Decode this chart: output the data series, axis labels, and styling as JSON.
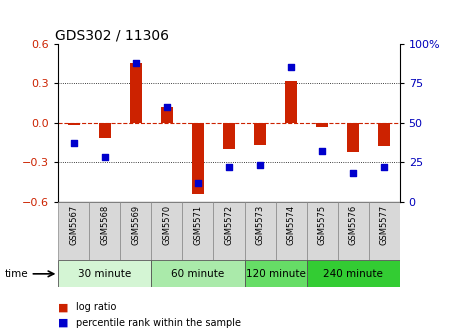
{
  "title": "GDS302 / 11306",
  "samples": [
    "GSM5567",
    "GSM5568",
    "GSM5569",
    "GSM5570",
    "GSM5571",
    "GSM5572",
    "GSM5573",
    "GSM5574",
    "GSM5575",
    "GSM5576",
    "GSM5577"
  ],
  "log_ratio": [
    -0.02,
    -0.12,
    0.45,
    0.12,
    -0.54,
    -0.2,
    -0.17,
    0.32,
    -0.03,
    -0.22,
    -0.18
  ],
  "percentile": [
    37,
    28,
    88,
    60,
    12,
    22,
    23,
    85,
    32,
    18,
    22
  ],
  "ylim": [
    -0.6,
    0.6
  ],
  "yticks_left": [
    -0.6,
    -0.3,
    0,
    0.3,
    0.6
  ],
  "yticks_right": [
    0,
    25,
    50,
    75,
    100
  ],
  "groups": [
    {
      "label": "30 minute",
      "start": 0,
      "end": 3,
      "color": "#d4f5d4"
    },
    {
      "label": "60 minute",
      "start": 3,
      "end": 6,
      "color": "#aaeaaa"
    },
    {
      "label": "120 minute",
      "start": 6,
      "end": 8,
      "color": "#66dd66"
    },
    {
      "label": "240 minute",
      "start": 8,
      "end": 11,
      "color": "#33cc33"
    }
  ],
  "bar_color": "#cc2200",
  "dot_color": "#0000cc",
  "zero_line_color": "#cc2200",
  "grid_color": "#000000",
  "legend_bar": "log ratio",
  "legend_dot": "percentile rank within the sample",
  "time_label": "time",
  "left_tick_color": "#cc2200",
  "right_tick_color": "#0000bb"
}
